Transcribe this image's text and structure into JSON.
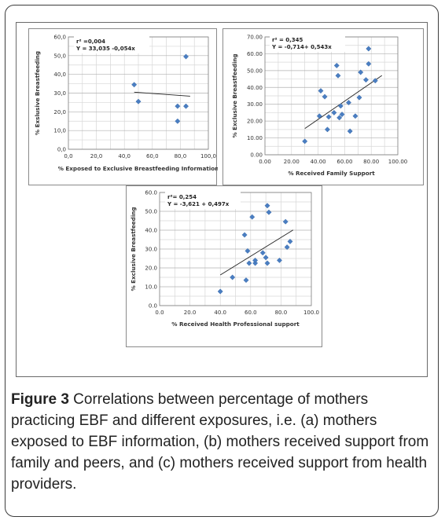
{
  "caption": {
    "label": "Figure 3",
    "text": " Correlations between percentage of mothers practicing EBF and different exposures, i.e. (a) mothers exposed to EBF information, (b) mothers received support from family and peers, and (c) mothers received support from health providers."
  },
  "chart_data": [
    {
      "type": "scatter",
      "xlabel": "% Exposed to Exclusive Breastfeeding Information",
      "ylabel": "% Exslusive Breastfeeding",
      "xlim": [
        0,
        100
      ],
      "ylim": [
        0,
        60
      ],
      "xticks": [
        "0,0",
        "20,0",
        "40,0",
        "60,0",
        "80,0",
        "100,0"
      ],
      "yticks": [
        "0,0",
        "10,0",
        "20,0",
        "30,0",
        "40,0",
        "50,0",
        "60,0"
      ],
      "annotation": [
        "r² =0,004",
        "Y = 33,035 -0,054x"
      ],
      "grid": true,
      "trend": {
        "intercept": 33.035,
        "slope": -0.054,
        "x_range": [
          47,
          87
        ]
      },
      "points": [
        {
          "x": 47,
          "y": 34.5
        },
        {
          "x": 50,
          "y": 25.5
        },
        {
          "x": 78,
          "y": 23
        },
        {
          "x": 78,
          "y": 15
        },
        {
          "x": 84,
          "y": 23
        },
        {
          "x": 84,
          "y": 49.5
        }
      ]
    },
    {
      "type": "scatter",
      "xlabel": "% Received Family Support",
      "ylabel": "% Exclusive Breastfeeding",
      "xlim": [
        0,
        100
      ],
      "ylim": [
        0,
        70
      ],
      "xticks": [
        "0.00",
        "20.00",
        "40.00",
        "60.00",
        "80.00",
        "100.00"
      ],
      "yticks": [
        "0.00",
        "10.00",
        "20.00",
        "30.00",
        "40.00",
        "50.00",
        "60.00",
        "70.00"
      ],
      "annotation": [
        "r² = 0,345",
        "Y = -0,714+ 0,543x"
      ],
      "grid": true,
      "trend": {
        "intercept": -0.714,
        "slope": 0.543,
        "x_range": [
          30,
          88
        ]
      },
      "points": [
        {
          "x": 30,
          "y": 8
        },
        {
          "x": 41,
          "y": 23
        },
        {
          "x": 42,
          "y": 38
        },
        {
          "x": 45,
          "y": 34.5
        },
        {
          "x": 47,
          "y": 15
        },
        {
          "x": 48,
          "y": 22.5
        },
        {
          "x": 52,
          "y": 25
        },
        {
          "x": 54,
          "y": 53
        },
        {
          "x": 55,
          "y": 47
        },
        {
          "x": 57,
          "y": 29
        },
        {
          "x": 56,
          "y": 22
        },
        {
          "x": 58,
          "y": 24
        },
        {
          "x": 63,
          "y": 31
        },
        {
          "x": 64,
          "y": 14
        },
        {
          "x": 68,
          "y": 23
        },
        {
          "x": 71,
          "y": 34
        },
        {
          "x": 72,
          "y": 49
        },
        {
          "x": 76,
          "y": 44.5
        },
        {
          "x": 78,
          "y": 54
        },
        {
          "x": 78,
          "y": 63
        },
        {
          "x": 83,
          "y": 44
        }
      ]
    },
    {
      "type": "scatter",
      "xlabel": "% Received Health Professional  support",
      "ylabel": "% Exclusive Breastfeeding",
      "xlim": [
        0,
        100
      ],
      "ylim": [
        0,
        60
      ],
      "xticks": [
        "0.0",
        "20.0",
        "40.0",
        "60.0",
        "80.0",
        "100.0"
      ],
      "yticks": [
        "0.0",
        "10.0",
        "20.0",
        "30.0",
        "40.0",
        "50.0",
        "60.0"
      ],
      "annotation": [
        "r²= 0,254",
        "Y = -3,621 + 0,497x"
      ],
      "grid": true,
      "trend": {
        "intercept": -3.621,
        "slope": 0.497,
        "x_range": [
          40,
          88
        ]
      },
      "points": [
        {
          "x": 40,
          "y": 7.5
        },
        {
          "x": 48,
          "y": 15
        },
        {
          "x": 56,
          "y": 37.5
        },
        {
          "x": 57,
          "y": 13.5
        },
        {
          "x": 58,
          "y": 29
        },
        {
          "x": 59,
          "y": 22.5
        },
        {
          "x": 61,
          "y": 47
        },
        {
          "x": 63,
          "y": 22.5
        },
        {
          "x": 63,
          "y": 24
        },
        {
          "x": 68,
          "y": 28
        },
        {
          "x": 70,
          "y": 25.5
        },
        {
          "x": 71,
          "y": 22.5
        },
        {
          "x": 71,
          "y": 53
        },
        {
          "x": 72,
          "y": 49.5
        },
        {
          "x": 79,
          "y": 24
        },
        {
          "x": 83,
          "y": 44.5
        },
        {
          "x": 84,
          "y": 31
        },
        {
          "x": 86,
          "y": 34
        }
      ]
    }
  ]
}
